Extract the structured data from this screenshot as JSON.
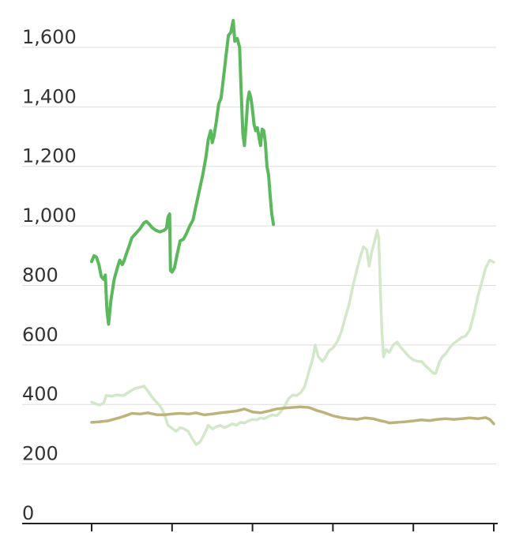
{
  "chart_data": {
    "type": "line",
    "title": "",
    "xlabel": "",
    "ylabel": "",
    "ylim": [
      0,
      1700
    ],
    "y_ticks": [
      0,
      200,
      400,
      600,
      800,
      1000,
      1200,
      1400,
      1600
    ],
    "y_tick_labels": [
      "0",
      "200",
      "400",
      "600",
      "800",
      "1,000",
      "1,200",
      "1,400",
      "1,600"
    ],
    "x_ticks": [
      0,
      1,
      2,
      3,
      4,
      5
    ],
    "x_tick_labels": [],
    "xlim": [
      0,
      5
    ],
    "grid": true,
    "legend": "none",
    "series": [
      {
        "color": "#d2e8c8",
        "points": [
          [
            0.0,
            408
          ],
          [
            0.05,
            402
          ],
          [
            0.1,
            398
          ],
          [
            0.15,
            405
          ],
          [
            0.18,
            430
          ],
          [
            0.25,
            428
          ],
          [
            0.32,
            432
          ],
          [
            0.4,
            430
          ],
          [
            0.45,
            440
          ],
          [
            0.5,
            448
          ],
          [
            0.55,
            455
          ],
          [
            0.6,
            458
          ],
          [
            0.65,
            462
          ],
          [
            0.7,
            445
          ],
          [
            0.75,
            425
          ],
          [
            0.8,
            410
          ],
          [
            0.85,
            395
          ],
          [
            0.9,
            370
          ],
          [
            0.95,
            330
          ],
          [
            1.0,
            320
          ],
          [
            1.05,
            310
          ],
          [
            1.1,
            322
          ],
          [
            1.15,
            318
          ],
          [
            1.2,
            310
          ],
          [
            1.25,
            285
          ],
          [
            1.3,
            265
          ],
          [
            1.35,
            275
          ],
          [
            1.4,
            300
          ],
          [
            1.45,
            330
          ],
          [
            1.5,
            318
          ],
          [
            1.55,
            325
          ],
          [
            1.6,
            330
          ],
          [
            1.65,
            322
          ],
          [
            1.7,
            328
          ],
          [
            1.75,
            335
          ],
          [
            1.8,
            330
          ],
          [
            1.85,
            340
          ],
          [
            1.9,
            338
          ],
          [
            1.95,
            345
          ],
          [
            2.0,
            350
          ],
          [
            2.05,
            348
          ],
          [
            2.1,
            355
          ],
          [
            2.15,
            352
          ],
          [
            2.2,
            360
          ],
          [
            2.25,
            365
          ],
          [
            2.3,
            362
          ],
          [
            2.35,
            375
          ],
          [
            2.4,
            395
          ],
          [
            2.45,
            420
          ],
          [
            2.5,
            432
          ],
          [
            2.55,
            430
          ],
          [
            2.6,
            440
          ],
          [
            2.65,
            460
          ],
          [
            2.7,
            510
          ],
          [
            2.75,
            555
          ],
          [
            2.78,
            600
          ],
          [
            2.82,
            560
          ],
          [
            2.87,
            545
          ],
          [
            2.9,
            555
          ],
          [
            2.95,
            580
          ],
          [
            3.0,
            590
          ],
          [
            3.05,
            610
          ],
          [
            3.1,
            640
          ],
          [
            3.15,
            690
          ],
          [
            3.2,
            735
          ],
          [
            3.25,
            800
          ],
          [
            3.3,
            855
          ],
          [
            3.35,
            905
          ],
          [
            3.38,
            930
          ],
          [
            3.42,
            920
          ],
          [
            3.45,
            865
          ],
          [
            3.48,
            910
          ],
          [
            3.52,
            950
          ],
          [
            3.55,
            985
          ],
          [
            3.57,
            960
          ],
          [
            3.59,
            780
          ],
          [
            3.61,
            640
          ],
          [
            3.63,
            560
          ],
          [
            3.66,
            585
          ],
          [
            3.7,
            575
          ],
          [
            3.75,
            600
          ],
          [
            3.8,
            610
          ],
          [
            3.85,
            590
          ],
          [
            3.9,
            575
          ],
          [
            3.95,
            560
          ],
          [
            4.0,
            550
          ],
          [
            4.05,
            545
          ],
          [
            4.1,
            545
          ],
          [
            4.15,
            530
          ],
          [
            4.2,
            518
          ],
          [
            4.25,
            505
          ],
          [
            4.28,
            505
          ],
          [
            4.32,
            540
          ],
          [
            4.36,
            560
          ],
          [
            4.4,
            570
          ],
          [
            4.45,
            590
          ],
          [
            4.5,
            605
          ],
          [
            4.55,
            615
          ],
          [
            4.6,
            625
          ],
          [
            4.65,
            630
          ],
          [
            4.7,
            650
          ],
          [
            4.75,
            700
          ],
          [
            4.8,
            760
          ],
          [
            4.85,
            810
          ],
          [
            4.9,
            860
          ],
          [
            4.95,
            885
          ],
          [
            5.0,
            878
          ]
        ]
      },
      {
        "color": "#bdb27a",
        "points": [
          [
            0.0,
            340
          ],
          [
            0.1,
            342
          ],
          [
            0.2,
            345
          ],
          [
            0.3,
            352
          ],
          [
            0.4,
            360
          ],
          [
            0.5,
            370
          ],
          [
            0.6,
            368
          ],
          [
            0.7,
            372
          ],
          [
            0.8,
            366
          ],
          [
            0.9,
            365
          ],
          [
            1.0,
            368
          ],
          [
            1.1,
            370
          ],
          [
            1.2,
            368
          ],
          [
            1.3,
            372
          ],
          [
            1.4,
            365
          ],
          [
            1.5,
            368
          ],
          [
            1.6,
            372
          ],
          [
            1.7,
            375
          ],
          [
            1.8,
            378
          ],
          [
            1.9,
            385
          ],
          [
            2.0,
            375
          ],
          [
            2.1,
            372
          ],
          [
            2.2,
            378
          ],
          [
            2.3,
            385
          ],
          [
            2.4,
            388
          ],
          [
            2.5,
            390
          ],
          [
            2.6,
            392
          ],
          [
            2.7,
            390
          ],
          [
            2.8,
            380
          ],
          [
            2.9,
            372
          ],
          [
            3.0,
            362
          ],
          [
            3.1,
            356
          ],
          [
            3.2,
            352
          ],
          [
            3.3,
            350
          ],
          [
            3.4,
            355
          ],
          [
            3.5,
            352
          ],
          [
            3.6,
            345
          ],
          [
            3.65,
            342
          ],
          [
            3.7,
            338
          ],
          [
            3.8,
            340
          ],
          [
            3.9,
            342
          ],
          [
            4.0,
            345
          ],
          [
            4.1,
            348
          ],
          [
            4.2,
            346
          ],
          [
            4.3,
            350
          ],
          [
            4.4,
            352
          ],
          [
            4.5,
            350
          ],
          [
            4.6,
            352
          ],
          [
            4.7,
            355
          ],
          [
            4.8,
            352
          ],
          [
            4.9,
            356
          ],
          [
            4.95,
            350
          ],
          [
            5.0,
            335
          ]
        ]
      },
      {
        "color": "#5cb85c",
        "points": [
          [
            0.0,
            880
          ],
          [
            0.03,
            900
          ],
          [
            0.06,
            895
          ],
          [
            0.09,
            870
          ],
          [
            0.12,
            830
          ],
          [
            0.15,
            820
          ],
          [
            0.17,
            835
          ],
          [
            0.19,
            720
          ],
          [
            0.21,
            670
          ],
          [
            0.24,
            750
          ],
          [
            0.28,
            820
          ],
          [
            0.32,
            860
          ],
          [
            0.35,
            885
          ],
          [
            0.38,
            870
          ],
          [
            0.4,
            880
          ],
          [
            0.43,
            905
          ],
          [
            0.47,
            935
          ],
          [
            0.5,
            960
          ],
          [
            0.55,
            975
          ],
          [
            0.6,
            990
          ],
          [
            0.65,
            1010
          ],
          [
            0.68,
            1015
          ],
          [
            0.72,
            1005
          ],
          [
            0.75,
            995
          ],
          [
            0.8,
            985
          ],
          [
            0.85,
            980
          ],
          [
            0.9,
            985
          ],
          [
            0.93,
            992
          ],
          [
            0.95,
            1030
          ],
          [
            0.97,
            1040
          ],
          [
            0.98,
            850
          ],
          [
            1.0,
            845
          ],
          [
            1.03,
            860
          ],
          [
            1.06,
            900
          ],
          [
            1.1,
            950
          ],
          [
            1.14,
            955
          ],
          [
            1.18,
            975
          ],
          [
            1.22,
            1000
          ],
          [
            1.26,
            1020
          ],
          [
            1.3,
            1070
          ],
          [
            1.34,
            1120
          ],
          [
            1.38,
            1170
          ],
          [
            1.42,
            1230
          ],
          [
            1.45,
            1290
          ],
          [
            1.48,
            1320
          ],
          [
            1.5,
            1280
          ],
          [
            1.52,
            1300
          ],
          [
            1.55,
            1350
          ],
          [
            1.58,
            1410
          ],
          [
            1.61,
            1430
          ],
          [
            1.64,
            1500
          ],
          [
            1.67,
            1570
          ],
          [
            1.7,
            1640
          ],
          [
            1.73,
            1650
          ],
          [
            1.76,
            1690
          ],
          [
            1.78,
            1620
          ],
          [
            1.81,
            1630
          ],
          [
            1.84,
            1600
          ],
          [
            1.86,
            1450
          ],
          [
            1.88,
            1310
          ],
          [
            1.9,
            1270
          ],
          [
            1.92,
            1340
          ],
          [
            1.94,
            1420
          ],
          [
            1.96,
            1450
          ],
          [
            1.98,
            1430
          ],
          [
            2.0,
            1390
          ],
          [
            2.02,
            1340
          ],
          [
            2.04,
            1320
          ],
          [
            2.06,
            1330
          ],
          [
            2.08,
            1300
          ],
          [
            2.1,
            1270
          ],
          [
            2.12,
            1325
          ],
          [
            2.14,
            1320
          ],
          [
            2.16,
            1280
          ],
          [
            2.18,
            1200
          ],
          [
            2.2,
            1170
          ],
          [
            2.22,
            1100
          ],
          [
            2.24,
            1040
          ],
          [
            2.26,
            1005
          ]
        ]
      }
    ]
  }
}
